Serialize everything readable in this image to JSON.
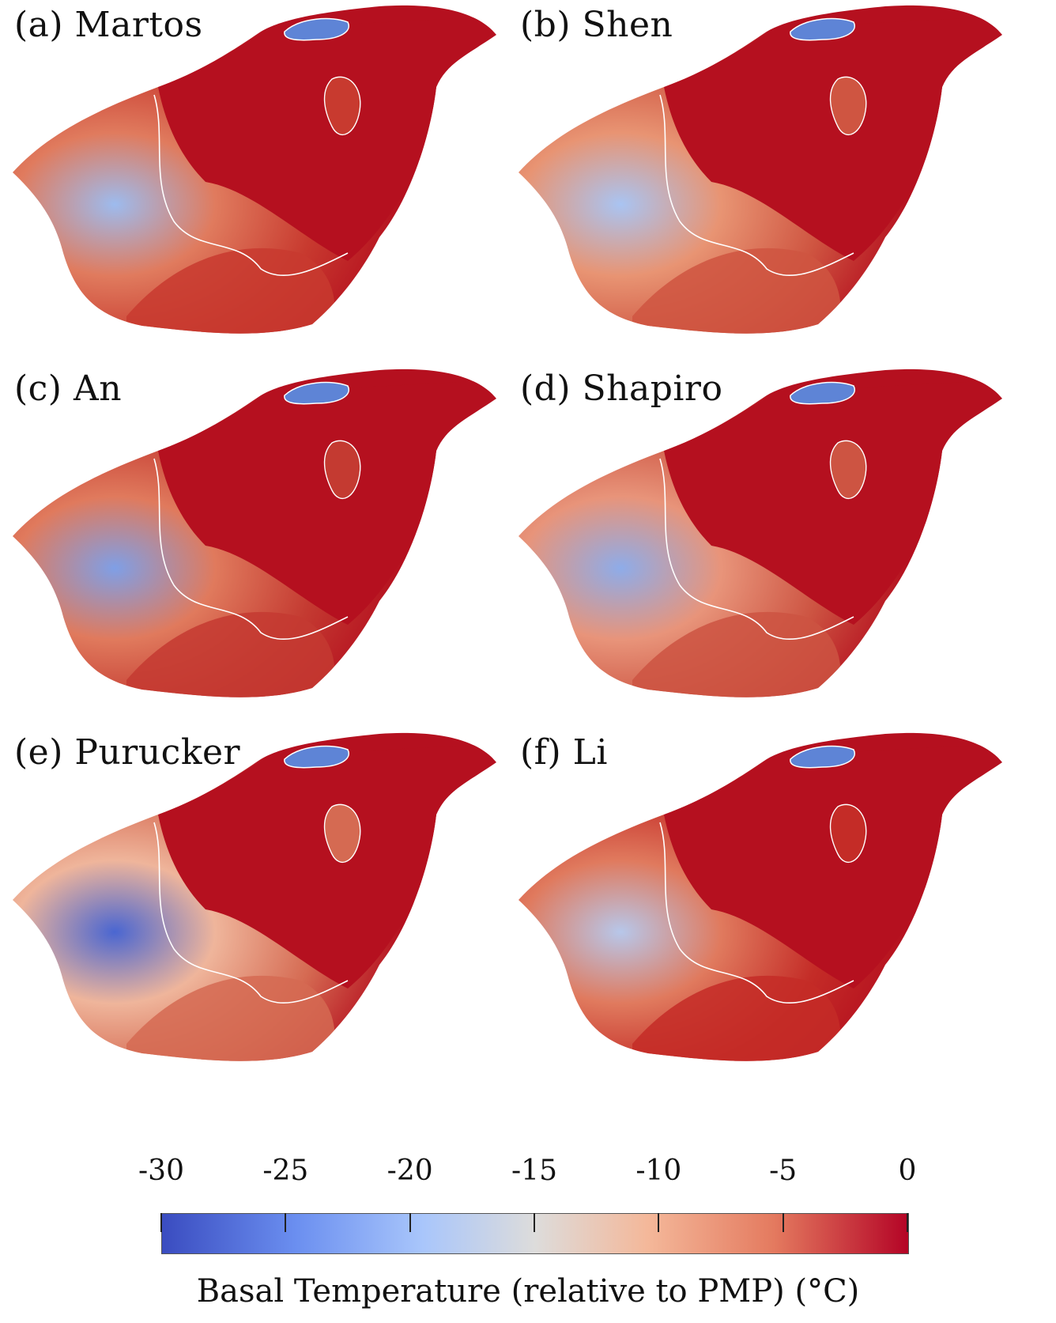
{
  "panels": [
    {
      "label": "(a) Martos",
      "warm_colors": [
        "#b5101f",
        "#c83a2f",
        "#e07b5e"
      ],
      "cold_color": "#9dbbee"
    },
    {
      "label": "(b) Shen",
      "warm_colors": [
        "#b5101f",
        "#cf5541",
        "#e89473"
      ],
      "cold_color": "#a9c4f2"
    },
    {
      "label": "(c) An",
      "warm_colors": [
        "#b5101f",
        "#c43a31",
        "#e07a5d"
      ],
      "cold_color": "#7f9fe6"
    },
    {
      "label": "(d) Shapiro",
      "warm_colors": [
        "#b5101f",
        "#cd5442",
        "#e8947a"
      ],
      "cold_color": "#8eace9"
    },
    {
      "label": "(e) Purucker",
      "warm_colors": [
        "#b5101f",
        "#d56a52",
        "#efb59b"
      ],
      "cold_color": "#4a66d1"
    },
    {
      "label": "(f) Li",
      "warm_colors": [
        "#b5101f",
        "#c42c27",
        "#e07a5e"
      ],
      "cold_color": "#b7c7ea"
    }
  ],
  "lake_color": "#5e84d6",
  "colorbar": {
    "ticks": [
      "-30",
      "-25",
      "-20",
      "-15",
      "-10",
      "-5",
      "0"
    ],
    "title": "Basal Temperature (relative to PMP)  (°C)",
    "colors": [
      "#3a4cc0",
      "#a9c6fb",
      "#dddcdb",
      "#f4b89a",
      "#b40426"
    ]
  }
}
